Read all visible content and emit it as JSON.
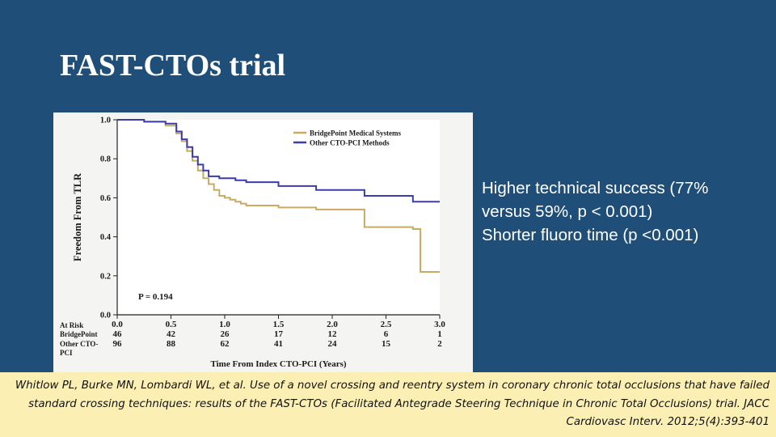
{
  "slide": {
    "title": "FAST-CTOs trial",
    "background_color": "#1f4e79"
  },
  "bullets": [
    "Higher technical success (77% versus 59%, p < 0.001)",
    "Shorter fluoro time (p <0.001)"
  ],
  "citation": "Whitlow PL, Burke MN, Lombardi WL, et al. Use of a novel crossing and reentry system in coronary chronic total occlusions that have failed standard crossing techniques: results of the FAST-CTOs (Facilitated Antegrade Steering Technique in Chronic Total Occlusions) trial. JACC Cardiovasc Interv. 2012;5(4):393-401",
  "chart_data": {
    "type": "line",
    "step": true,
    "ylabel": "Freedom From TLR",
    "xlabel": "Time From Index CTO-PCI (Years)",
    "xlim": [
      0,
      3.0
    ],
    "ylim": [
      0,
      1.0
    ],
    "xticks": [
      "0.0",
      "0.5",
      "1.0",
      "1.5",
      "2.0",
      "2.5",
      "3.0"
    ],
    "yticks": [
      "0.0",
      "0.2",
      "0.4",
      "0.6",
      "0.8",
      "1.0"
    ],
    "legend_position": "top-right",
    "annotation": "P = 0.194",
    "series": [
      {
        "name": "BridgePoint Medical Systems",
        "color": "#c9aa63",
        "x": [
          0,
          0.25,
          0.45,
          0.55,
          0.6,
          0.65,
          0.7,
          0.75,
          0.8,
          0.85,
          0.9,
          0.95,
          1.0,
          1.05,
          1.1,
          1.15,
          1.2,
          1.5,
          1.85,
          2.3,
          2.75,
          2.82,
          3.0
        ],
        "y": [
          1.0,
          0.99,
          0.97,
          0.93,
          0.89,
          0.84,
          0.79,
          0.74,
          0.7,
          0.67,
          0.64,
          0.61,
          0.6,
          0.59,
          0.58,
          0.57,
          0.56,
          0.55,
          0.54,
          0.45,
          0.44,
          0.22,
          0.22
        ]
      },
      {
        "name": "Other CTO-PCI Methods",
        "color": "#3c3cad",
        "x": [
          0,
          0.25,
          0.45,
          0.55,
          0.6,
          0.65,
          0.7,
          0.75,
          0.8,
          0.85,
          0.95,
          1.1,
          1.2,
          1.5,
          1.85,
          2.3,
          2.75,
          3.0
        ],
        "y": [
          1.0,
          0.99,
          0.98,
          0.94,
          0.9,
          0.86,
          0.81,
          0.77,
          0.74,
          0.71,
          0.7,
          0.69,
          0.68,
          0.66,
          0.64,
          0.61,
          0.58,
          0.58
        ]
      }
    ],
    "at_risk": {
      "header": "At Risk",
      "rows": [
        {
          "label": "BridgePoint",
          "values": [
            "46",
            "42",
            "26",
            "17",
            "12",
            "6",
            "1"
          ]
        },
        {
          "label": "Other CTO-PCI",
          "values": [
            "96",
            "88",
            "62",
            "41",
            "24",
            "15",
            "2"
          ]
        }
      ]
    }
  }
}
